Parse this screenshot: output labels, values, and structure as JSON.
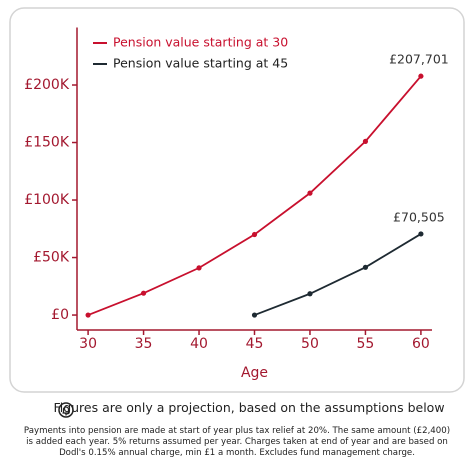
{
  "chart_data": {
    "type": "line",
    "x": [
      30,
      35,
      40,
      45,
      50,
      55,
      60
    ],
    "xlabel": "Age",
    "series": [
      {
        "name": "Pension value starting at 30",
        "color": "#c8102e",
        "values": [
          0,
          19000,
          41000,
          70000,
          106000,
          151000,
          207701
        ],
        "value_labels": [
          null,
          null,
          null,
          null,
          null,
          null,
          "£207,701"
        ]
      },
      {
        "name": "Pension value starting at 45",
        "color": "#1e2a32",
        "values": [
          null,
          null,
          null,
          0,
          18500,
          41500,
          70505
        ],
        "value_labels": [
          null,
          null,
          null,
          null,
          null,
          null,
          "£70,505"
        ]
      }
    ],
    "xlim": [
      29,
      61
    ],
    "xticks": [
      30,
      35,
      40,
      45,
      50,
      55,
      60
    ],
    "ylim": [
      -13000,
      250000
    ],
    "yticks": [
      {
        "value": 0,
        "label": "£0"
      },
      {
        "value": 50000,
        "label": "£50K"
      },
      {
        "value": 100000,
        "label": "£100K"
      },
      {
        "value": 150000,
        "label": "£150K"
      },
      {
        "value": 200000,
        "label": "£200K"
      }
    ],
    "axis_color": "#a3182f",
    "legend": "upper left"
  },
  "footer": {
    "note": "Figures are only a projection, based on the assumptions below",
    "disclaimer": "Payments into pension are made at start of year plus tax relief at 20%. The same amount (£2,400) is added each year. 5% returns assumed per year. Charges taken at end of year and are based on Dodl's 0.15% annual charge, min £1 a month. Excludes fund management charge."
  }
}
